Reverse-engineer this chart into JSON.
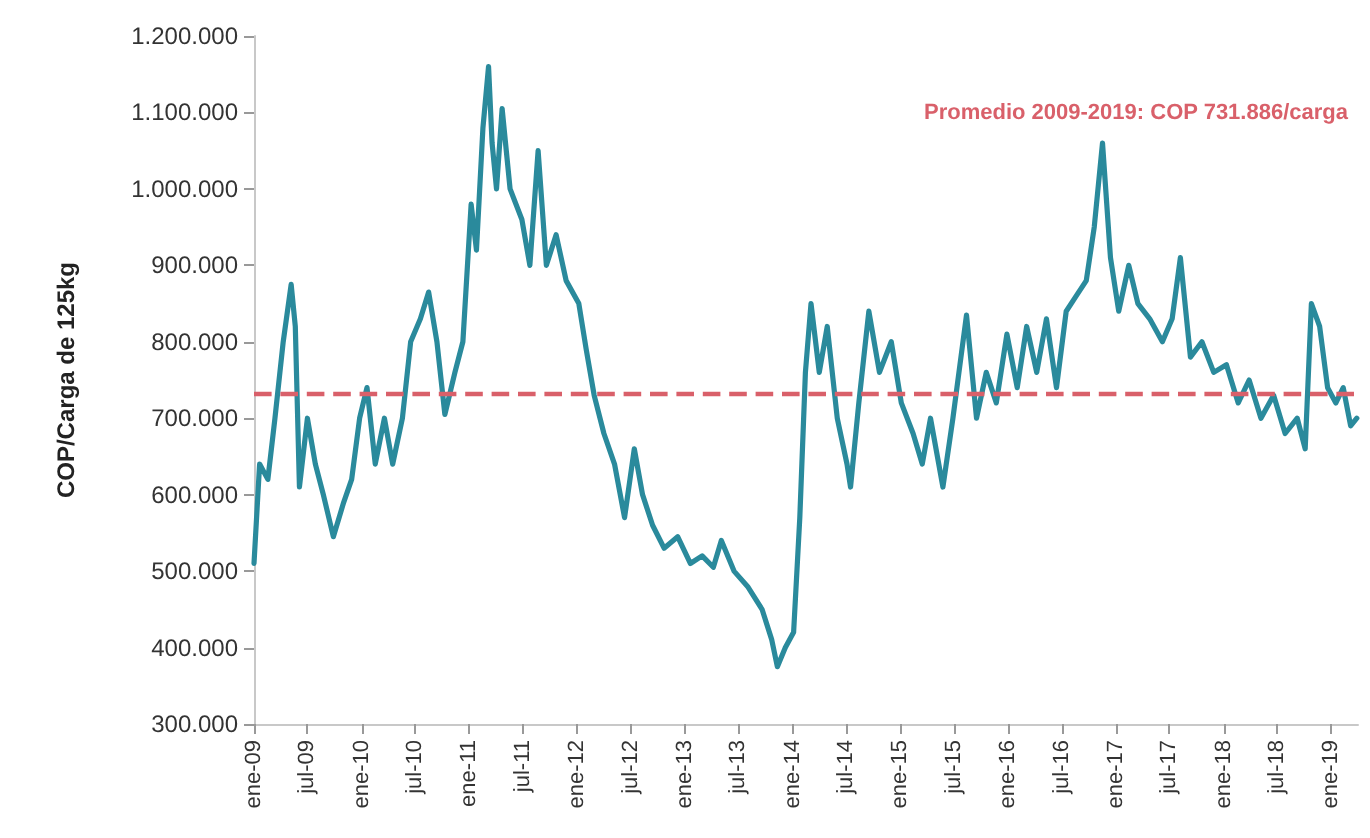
{
  "chart_data": {
    "type": "line",
    "ylabel": "COP/Carga de 125kg",
    "ylim": [
      300000,
      1200000
    ],
    "yticks": [
      {
        "value": 300000,
        "label": "300.000"
      },
      {
        "value": 400000,
        "label": "400.000"
      },
      {
        "value": 500000,
        "label": "500.000"
      },
      {
        "value": 600000,
        "label": "600.000"
      },
      {
        "value": 700000,
        "label": "700.000"
      },
      {
        "value": 800000,
        "label": "800.000"
      },
      {
        "value": 900000,
        "label": "900.000"
      },
      {
        "value": 1000000,
        "label": "1.000.000"
      },
      {
        "value": 1100000,
        "label": "1.100.000"
      },
      {
        "value": 1200000,
        "label": "1.200.000"
      }
    ],
    "xlim": [
      "2009-01-01",
      "2019-04-01"
    ],
    "xticks": [
      {
        "value": "2009-01-01",
        "label": "ene-09"
      },
      {
        "value": "2009-07-01",
        "label": "jul-09"
      },
      {
        "value": "2010-01-01",
        "label": "ene-10"
      },
      {
        "value": "2010-07-01",
        "label": "jul-10"
      },
      {
        "value": "2011-01-01",
        "label": "ene-11"
      },
      {
        "value": "2011-07-01",
        "label": "jul-11"
      },
      {
        "value": "2012-01-01",
        "label": "ene-12"
      },
      {
        "value": "2012-07-01",
        "label": "jul-12"
      },
      {
        "value": "2013-01-01",
        "label": "ene-13"
      },
      {
        "value": "2013-07-01",
        "label": "jul-13"
      },
      {
        "value": "2014-01-01",
        "label": "ene-14"
      },
      {
        "value": "2014-07-01",
        "label": "jul-14"
      },
      {
        "value": "2015-01-01",
        "label": "ene-15"
      },
      {
        "value": "2015-07-01",
        "label": "jul-15"
      },
      {
        "value": "2016-01-01",
        "label": "ene-16"
      },
      {
        "value": "2016-07-01",
        "label": "jul-16"
      },
      {
        "value": "2017-01-01",
        "label": "ene-17"
      },
      {
        "value": "2017-07-01",
        "label": "jul-17"
      },
      {
        "value": "2018-01-01",
        "label": "ene-18"
      },
      {
        "value": "2018-07-01",
        "label": "jul-18"
      },
      {
        "value": "2019-01-01",
        "label": "ene-19"
      }
    ],
    "x": [
      "2009-01-01",
      "2009-01-20",
      "2009-02-17",
      "2009-03-13",
      "2009-04-10",
      "2009-05-07",
      "2009-05-21",
      "2009-06-04",
      "2009-07-01",
      "2009-07-28",
      "2009-08-24",
      "2009-09-27",
      "2009-11-01",
      "2009-11-28",
      "2009-12-25",
      "2010-01-19",
      "2010-02-16",
      "2010-03-19",
      "2010-04-16",
      "2010-05-19",
      "2010-06-16",
      "2010-07-19",
      "2010-08-16",
      "2010-09-13",
      "2010-10-10",
      "2010-11-13",
      "2010-12-10",
      "2011-01-07",
      "2011-01-25",
      "2011-02-16",
      "2011-03-07",
      "2011-03-19",
      "2011-04-03",
      "2011-04-22",
      "2011-05-19",
      "2011-06-28",
      "2011-07-25",
      "2011-08-22",
      "2011-09-19",
      "2011-10-22",
      "2011-11-25",
      "2012-01-07",
      "2012-02-01",
      "2012-02-28",
      "2012-04-01",
      "2012-05-07",
      "2012-06-10",
      "2012-07-13",
      "2012-08-10",
      "2012-09-13",
      "2012-10-22",
      "2012-12-07",
      "2013-01-19",
      "2013-02-28",
      "2013-04-07",
      "2013-05-04",
      "2013-06-16",
      "2013-08-01",
      "2013-09-19",
      "2013-10-22",
      "2013-11-10",
      "2013-12-07",
      "2014-01-04",
      "2014-01-25",
      "2014-02-13",
      "2014-03-04",
      "2014-04-01",
      "2014-04-28",
      "2014-06-01",
      "2014-07-04",
      "2014-07-16",
      "2014-08-13",
      "2014-09-16",
      "2014-10-22",
      "2014-12-01",
      "2015-01-04",
      "2015-02-13",
      "2015-03-16",
      "2015-04-13",
      "2015-05-25",
      "2015-06-28",
      "2015-08-13",
      "2015-09-16",
      "2015-10-19",
      "2015-11-22",
      "2015-12-28",
      "2016-02-01",
      "2016-03-04",
      "2016-04-07",
      "2016-05-10",
      "2016-06-13",
      "2016-07-16",
      "2016-08-19",
      "2016-09-22",
      "2016-10-19",
      "2016-11-16",
      "2016-12-13",
      "2017-01-10",
      "2017-02-13",
      "2017-03-16",
      "2017-04-25",
      "2017-06-07",
      "2017-07-10",
      "2017-08-07",
      "2017-09-10",
      "2017-10-19",
      "2017-11-28",
      "2018-01-10",
      "2018-02-19",
      "2018-03-28",
      "2018-05-07",
      "2018-06-19",
      "2018-07-28",
      "2018-09-07",
      "2018-10-04",
      "2018-10-25",
      "2018-11-22",
      "2018-12-19",
      "2019-01-16",
      "2019-02-10",
      "2019-03-07",
      "2019-03-28"
    ],
    "series": [
      {
        "color": "#2a8a9c",
        "values": [
          510000,
          640000,
          620000,
          700000,
          800000,
          875000,
          820000,
          610000,
          700000,
          640000,
          600000,
          545000,
          590000,
          620000,
          700000,
          740000,
          640000,
          700000,
          640000,
          700000,
          800000,
          830000,
          865000,
          800000,
          705000,
          760000,
          800000,
          980000,
          920000,
          1080000,
          1160000,
          1060000,
          1000000,
          1105000,
          1000000,
          960000,
          900000,
          1050000,
          900000,
          940000,
          880000,
          850000,
          790000,
          730000,
          680000,
          640000,
          570000,
          660000,
          600000,
          560000,
          530000,
          545000,
          510000,
          520000,
          505000,
          540000,
          500000,
          480000,
          450000,
          410000,
          375000,
          400000,
          420000,
          570000,
          760000,
          850000,
          760000,
          820000,
          700000,
          640000,
          610000,
          720000,
          840000,
          760000,
          800000,
          720000,
          680000,
          640000,
          700000,
          610000,
          700000,
          835000,
          700000,
          760000,
          720000,
          810000,
          740000,
          820000,
          760000,
          830000,
          740000,
          840000,
          860000,
          880000,
          950000,
          1060000,
          910000,
          840000,
          900000,
          850000,
          830000,
          800000,
          830000,
          910000,
          780000,
          800000,
          760000,
          770000,
          720000,
          750000,
          700000,
          730000,
          680000,
          700000,
          660000,
          850000,
          820000,
          740000,
          720000,
          740000,
          690000,
          700000
        ]
      }
    ],
    "ref_lines": [
      {
        "axis": "y",
        "value": 731886,
        "label": "Promedio 2009-2019: COP 731.886/carga",
        "color": "#d9606a",
        "line_style": "dashed"
      }
    ],
    "line_style": "solid",
    "marker": "none",
    "grid": false
  }
}
